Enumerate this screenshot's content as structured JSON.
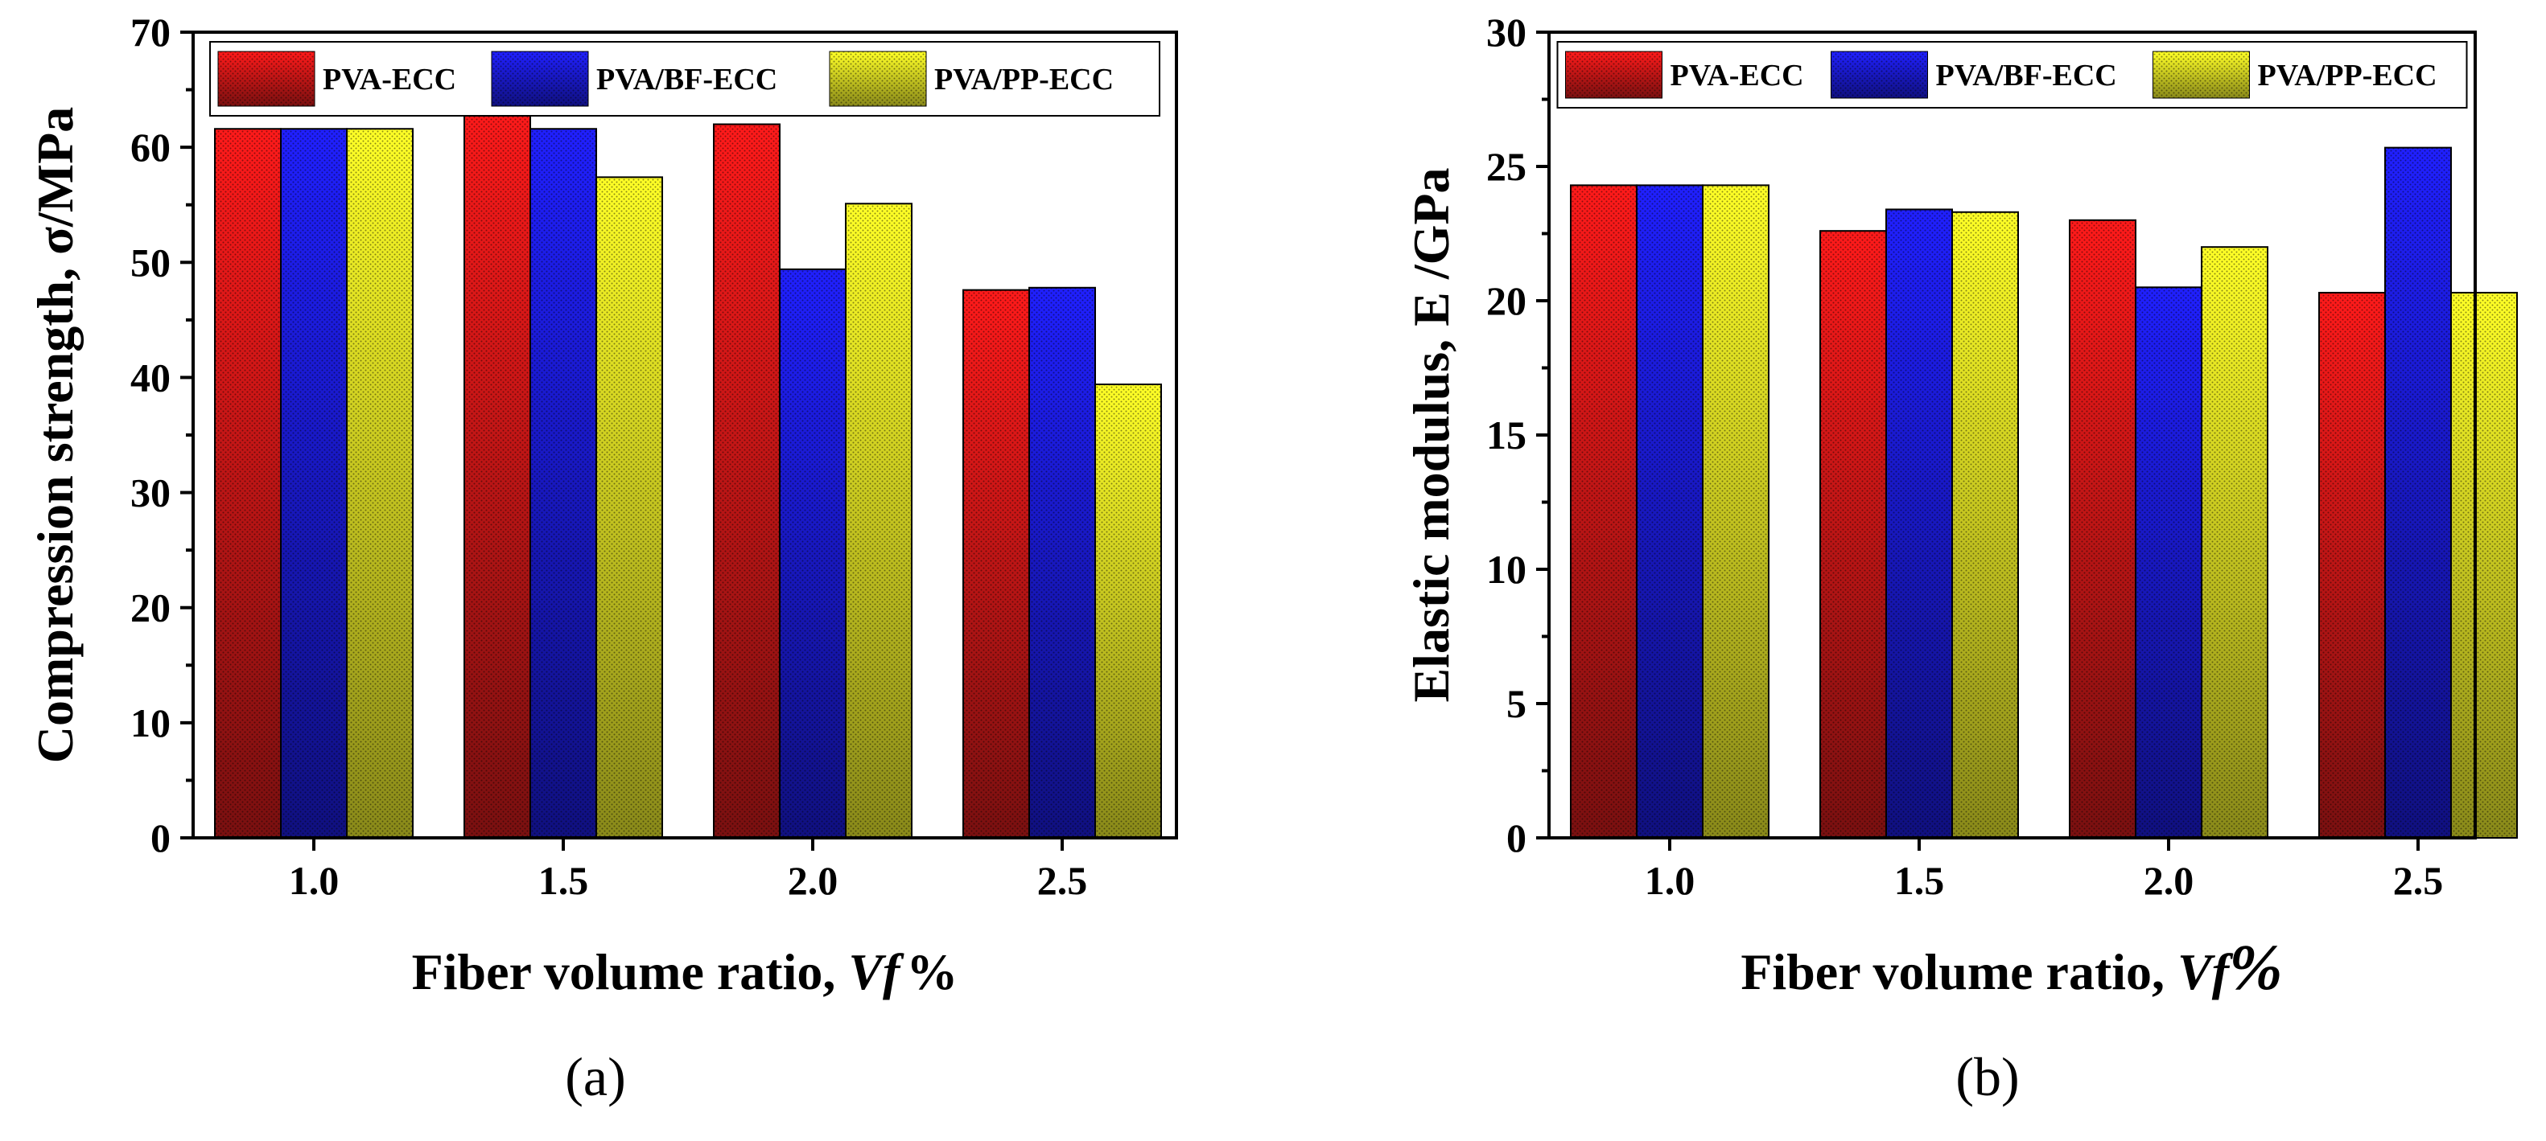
{
  "colors": {
    "pva_ecc": "#ee1111",
    "pva_bf_ecc": "#1a1ae0",
    "pva_pp_ecc": "#eeee22",
    "axis": "#000000"
  },
  "chart_data": [
    {
      "type": "bar",
      "panel_label": "(a)",
      "title": "",
      "categories": [
        "1.0",
        "1.5",
        "2.0",
        "2.5"
      ],
      "series": [
        {
          "name": "PVA-ECC",
          "values": [
            61.6,
            64.0,
            62.0,
            47.6
          ]
        },
        {
          "name": "PVA/BF-ECC",
          "values": [
            61.6,
            61.6,
            49.4,
            47.8
          ]
        },
        {
          "name": "PVA/PP-ECC",
          "values": [
            61.6,
            57.4,
            55.1,
            39.4
          ]
        }
      ],
      "xlabel_main": "Fiber volume ratio, ",
      "xlabel_var": "Vf",
      "xlabel_unit": "%",
      "ylabel": "Compression strength, σ/MPa",
      "ylim": [
        0,
        70
      ],
      "yticks": [
        "0",
        "10",
        "20",
        "30",
        "40",
        "50",
        "60",
        "70"
      ],
      "legend": [
        "PVA-ECC",
        "PVA/BF-ECC",
        "PVA/PP-ECC"
      ],
      "legend_position": "top"
    },
    {
      "type": "bar",
      "panel_label": "(b)",
      "title": "",
      "categories": [
        "1.0",
        "1.5",
        "2.0",
        "2.5"
      ],
      "series": [
        {
          "name": "PVA-ECC",
          "values": [
            24.3,
            22.6,
            23.0,
            20.3
          ]
        },
        {
          "name": "PVA/BF-ECC",
          "values": [
            24.3,
            23.4,
            20.5,
            25.7
          ]
        },
        {
          "name": "PVA/PP-ECC",
          "values": [
            24.3,
            23.3,
            22.0,
            20.3
          ]
        }
      ],
      "xlabel_main": "Fiber volume ratio, ",
      "xlabel_var": "Vf",
      "xlabel_unit": "%",
      "ylabel": "Elastic modulus, E /GPa",
      "ylim": [
        0,
        30
      ],
      "yticks": [
        "0",
        "5",
        "10",
        "15",
        "20",
        "25",
        "30"
      ],
      "legend": [
        "PVA-ECC",
        "PVA/BF-ECC",
        "PVA/PP-ECC"
      ],
      "legend_position": "top"
    }
  ]
}
